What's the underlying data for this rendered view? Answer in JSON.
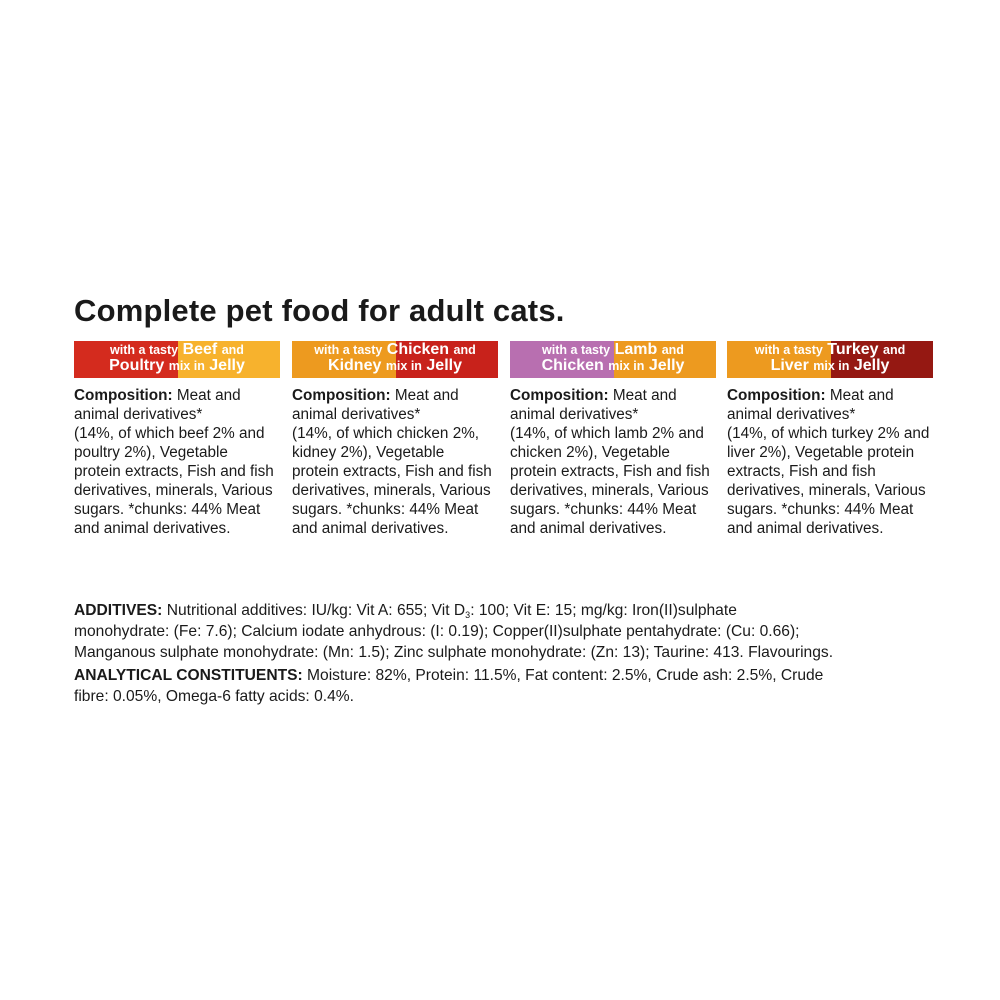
{
  "title": "Complete pet food for adult cats.",
  "colors": {
    "red": "#d42b1e",
    "yellow": "#f7b22d",
    "orange": "#ed9a1f",
    "purple": "#b86fb0",
    "dark_red": "#951812",
    "crimson": "#c8221b"
  },
  "cards": [
    {
      "banner": {
        "line1_small": "with a tasty",
        "line1_big": "Beef",
        "line1_end": "and",
        "line2_big": "Poultry",
        "line2_small": "mix in",
        "line2_end": "Jelly"
      },
      "composition_label": "Composition:",
      "lines": [
        " Meat and",
        "animal derivatives*",
        "(14%, of which beef 2% and",
        "poultry 2%), Vegetable",
        "protein extracts, Fish and fish",
        "derivatives, minerals, Various",
        "sugars. *chunks: 44% Meat",
        "and animal derivatives."
      ]
    },
    {
      "banner": {
        "line1_small": "with a tasty",
        "line1_big": "Chicken",
        "line1_end": "and",
        "line2_big": "Kidney",
        "line2_small": "mix in",
        "line2_end": "Jelly"
      },
      "composition_label": "Composition:",
      "lines": [
        " Meat and",
        "animal derivatives*",
        "(14%, of which chicken 2%,",
        "kidney 2%), Vegetable",
        "protein extracts, Fish and fish",
        "derivatives, minerals, Various",
        "sugars. *chunks: 44% Meat",
        "and animal derivatives."
      ]
    },
    {
      "banner": {
        "line1_small": "with a tasty",
        "line1_big": "Lamb",
        "line1_end": "and",
        "line2_big": "Chicken",
        "line2_small": "mix in",
        "line2_end": "Jelly"
      },
      "composition_label": "Composition:",
      "lines": [
        " Meat and",
        "animal derivatives*",
        "(14%, of which lamb 2% and",
        "chicken 2%), Vegetable",
        "protein extracts, Fish and fish",
        "derivatives, minerals, Various",
        "sugars. *chunks: 44% Meat",
        "and animal derivatives."
      ]
    },
    {
      "banner": {
        "line1_small": "with a tasty",
        "line1_big": "Turkey",
        "line1_end": "and",
        "line2_big": "Liver",
        "line2_small": "mix in",
        "line2_end": "Jelly"
      },
      "composition_label": "Composition:",
      "lines": [
        " Meat and",
        "animal derivatives*",
        "(14%, of which turkey 2% and",
        "liver 2%), Vegetable protein",
        "extracts, Fish and fish",
        "derivatives, minerals, Various",
        "sugars. *chunks: 44% Meat",
        "and animal derivatives."
      ]
    }
  ],
  "additives": {
    "label": "ADDITIVES:",
    "line1a": " Nutritional additives: IU/kg: Vit A: 655; Vit D",
    "line1_sub": "3",
    "line1b": ": 100; Vit E: 15; mg/kg: Iron(II)sulphate",
    "line2": "monohydrate: (Fe: 7.6); Calcium iodate anhydrous: (I: 0.19); Copper(II)sulphate pentahydrate: (Cu: 0.66);",
    "line3": "Manganous sulphate monohydrate: (Mn: 1.5); Zinc sulphate monohydrate: (Zn: 13); Taurine: 413. Flavourings."
  },
  "analytical": {
    "label": "ANALYTICAL CONSTITUENTS:",
    "line1": " Moisture: 82%, Protein: 11.5%, Fat content: 2.5%, Crude ash: 2.5%, Crude",
    "line2": "fibre: 0.05%, Omega-6 fatty acids: 0.4%."
  }
}
